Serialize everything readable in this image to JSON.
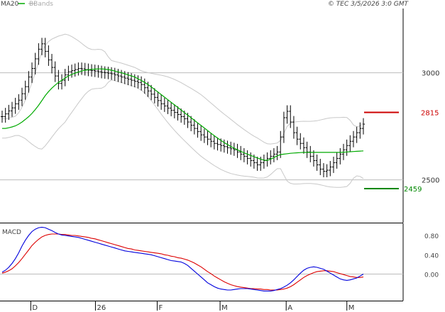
{
  "header": {
    "ma_label": "MA20",
    "bb_label": "BBands",
    "source_text": "© TEC 3/5/2026 3:0 GMT"
  },
  "levels": {
    "resistance": {
      "label": "2815",
      "value": 2815,
      "color": "#cc0000"
    },
    "support": {
      "label": "2459",
      "value": 2459,
      "color": "#008800"
    }
  },
  "macd_panel": {
    "label": "MACD",
    "y_ticks": [
      {
        "label": "0.80",
        "value": 0.8
      },
      {
        "label": "0.40",
        "value": 0.4
      },
      {
        "label": "0.00",
        "value": 0.0
      }
    ]
  },
  "colors": {
    "bars": "#000000",
    "ma": "#00aa00",
    "bbands": "#c8c8c8",
    "macd_line": "#0000dd",
    "signal_line": "#dd0000",
    "gridline": "#bbbbbb"
  },
  "chart_data": [
    {
      "type": "ohlc",
      "title": "",
      "x_tick_labels": [
        "D",
        "26",
        "F",
        "M",
        "A",
        "M"
      ],
      "y_ticks": [
        {
          "label": "3000",
          "value": 3000
        },
        {
          "label": "2500",
          "value": 2500
        }
      ],
      "ylim": [
        2300,
        3300
      ],
      "grid": true,
      "series": [
        {
          "name": "price",
          "closes": [
            2795,
            2808,
            2822,
            2836,
            2855,
            2872,
            2902,
            2935,
            2980,
            3020,
            3065,
            3110,
            3135,
            3100,
            3060,
            3025,
            2985,
            2950,
            2965,
            2990,
            3005,
            3010,
            3015,
            3020,
            3018,
            3015,
            3012,
            3010,
            3008,
            3005,
            3002,
            3000,
            2998,
            2995,
            2990,
            2985,
            2980,
            2975,
            2970,
            2965,
            2960,
            2955,
            2945,
            2930,
            2915,
            2900,
            2885,
            2870,
            2855,
            2845,
            2835,
            2825,
            2815,
            2805,
            2795,
            2785,
            2770,
            2755,
            2740,
            2725,
            2710,
            2700,
            2690,
            2680,
            2670,
            2665,
            2660,
            2655,
            2650,
            2645,
            2640,
            2630,
            2620,
            2610,
            2600,
            2590,
            2580,
            2570,
            2580,
            2590,
            2600,
            2610,
            2620,
            2630,
            2700,
            2790,
            2820,
            2770,
            2720,
            2690,
            2670,
            2650,
            2630,
            2610,
            2590,
            2570,
            2550,
            2540,
            2545,
            2560,
            2580,
            2600,
            2620,
            2640,
            2660,
            2680,
            2700,
            2720,
            2740,
            2760
          ]
        },
        {
          "name": "MA20",
          "values": [
            2740,
            2740,
            2743,
            2747,
            2752,
            2760,
            2770,
            2782,
            2795,
            2810,
            2828,
            2848,
            2870,
            2893,
            2912,
            2928,
            2942,
            2955,
            2965,
            2975,
            2985,
            2992,
            2998,
            3004,
            3008,
            3012,
            3014,
            3016,
            3017,
            3018,
            3018,
            3017,
            3015,
            3012,
            3008,
            3004,
            3000,
            2995,
            2990,
            2985,
            2980,
            2972,
            2964,
            2955,
            2945,
            2934,
            2922,
            2910,
            2898,
            2886,
            2874,
            2862,
            2850,
            2838,
            2826,
            2814,
            2802,
            2790,
            2778,
            2766,
            2754,
            2742,
            2730,
            2718,
            2706,
            2695,
            2684,
            2674,
            2665,
            2656,
            2648,
            2640,
            2633,
            2626,
            2620,
            2614,
            2608,
            2602,
            2597,
            2592,
            2591,
            2596,
            2604,
            2612,
            2618,
            2620,
            2622,
            2624,
            2625,
            2626,
            2627,
            2628,
            2628,
            2628,
            2628,
            2628,
            2628,
            2628,
            2628,
            2628,
            2628,
            2628,
            2628,
            2629,
            2630,
            2631,
            2632,
            2633,
            2634,
            2635
          ]
        }
      ]
    },
    {
      "type": "line",
      "title": "MACD",
      "series": [
        {
          "name": "MACD",
          "values": [
            0.04,
            0.08,
            0.14,
            0.22,
            0.32,
            0.44,
            0.58,
            0.7,
            0.8,
            0.88,
            0.93,
            0.96,
            0.97,
            0.96,
            0.93,
            0.9,
            0.86,
            0.83,
            0.81,
            0.8,
            0.79,
            0.78,
            0.77,
            0.76,
            0.74,
            0.72,
            0.7,
            0.68,
            0.66,
            0.64,
            0.62,
            0.6,
            0.58,
            0.56,
            0.54,
            0.52,
            0.5,
            0.48,
            0.47,
            0.46,
            0.45,
            0.44,
            0.43,
            0.42,
            0.41,
            0.4,
            0.38,
            0.36,
            0.34,
            0.32,
            0.3,
            0.28,
            0.27,
            0.26,
            0.25,
            0.22,
            0.18,
            0.12,
            0.06,
            0.0,
            -0.06,
            -0.12,
            -0.18,
            -0.22,
            -0.26,
            -0.29,
            -0.31,
            -0.32,
            -0.33,
            -0.33,
            -0.32,
            -0.31,
            -0.3,
            -0.3,
            -0.3,
            -0.31,
            -0.32,
            -0.33,
            -0.34,
            -0.35,
            -0.35,
            -0.35,
            -0.34,
            -0.32,
            -0.3,
            -0.27,
            -0.23,
            -0.18,
            -0.12,
            -0.05,
            0.02,
            0.08,
            0.12,
            0.14,
            0.15,
            0.14,
            0.12,
            0.1,
            0.06,
            0.02,
            -0.02,
            -0.06,
            -0.1,
            -0.12,
            -0.13,
            -0.12,
            -0.1,
            -0.08,
            -0.04,
            0.0
          ]
        },
        {
          "name": "Signal",
          "values": [
            0.02,
            0.04,
            0.07,
            0.11,
            0.17,
            0.24,
            0.32,
            0.41,
            0.5,
            0.59,
            0.66,
            0.72,
            0.77,
            0.8,
            0.82,
            0.83,
            0.83,
            0.83,
            0.82,
            0.82,
            0.81,
            0.8,
            0.8,
            0.79,
            0.78,
            0.77,
            0.76,
            0.74,
            0.73,
            0.71,
            0.69,
            0.67,
            0.65,
            0.63,
            0.61,
            0.59,
            0.57,
            0.55,
            0.53,
            0.52,
            0.5,
            0.49,
            0.48,
            0.47,
            0.46,
            0.45,
            0.44,
            0.43,
            0.42,
            0.4,
            0.39,
            0.37,
            0.36,
            0.34,
            0.33,
            0.31,
            0.29,
            0.26,
            0.23,
            0.19,
            0.15,
            0.1,
            0.05,
            0.01,
            -0.04,
            -0.08,
            -0.12,
            -0.16,
            -0.19,
            -0.22,
            -0.24,
            -0.26,
            -0.27,
            -0.28,
            -0.29,
            -0.3,
            -0.3,
            -0.31,
            -0.31,
            -0.32,
            -0.32,
            -0.33,
            -0.33,
            -0.33,
            -0.32,
            -0.31,
            -0.29,
            -0.26,
            -0.22,
            -0.17,
            -0.12,
            -0.07,
            -0.03,
            0.0,
            0.03,
            0.05,
            0.06,
            0.07,
            0.07,
            0.06,
            0.05,
            0.03,
            0.01,
            -0.01,
            -0.03,
            -0.05,
            -0.06,
            -0.07,
            -0.07,
            -0.06
          ]
        }
      ]
    }
  ]
}
